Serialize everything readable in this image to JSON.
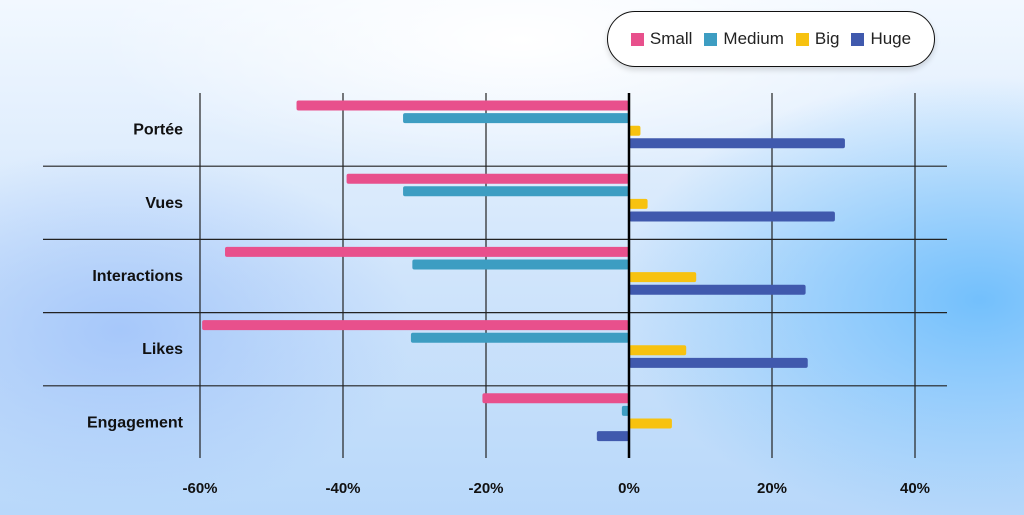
{
  "chart_data": {
    "type": "bar",
    "orientation": "horizontal",
    "categories": [
      "Portée",
      "Vues",
      "Interactions",
      "Likes",
      "Engagement"
    ],
    "series": [
      {
        "name": "Small",
        "color": "#e8508c",
        "values": [
          -46.5,
          -39.5,
          -56.5,
          -59.7,
          -20.5
        ]
      },
      {
        "name": "Medium",
        "color": "#3d9dc2",
        "values": [
          -31.6,
          -31.6,
          -30.3,
          -30.5,
          -1.0
        ]
      },
      {
        "name": "Big",
        "color": "#f7c210",
        "values": [
          1.6,
          2.6,
          9.4,
          8.0,
          6.0
        ]
      },
      {
        "name": "Huge",
        "color": "#4059ad",
        "values": [
          30.2,
          28.8,
          24.7,
          25.0,
          -4.5
        ]
      }
    ],
    "xlim": [
      -60,
      40
    ],
    "xticks": [
      -60,
      -40,
      -20,
      0,
      20,
      40
    ],
    "xtick_labels": [
      "-60%",
      "-40%",
      "-20%",
      "0%",
      "20%",
      "40%"
    ],
    "grid": true,
    "legend_position": "top-right"
  }
}
